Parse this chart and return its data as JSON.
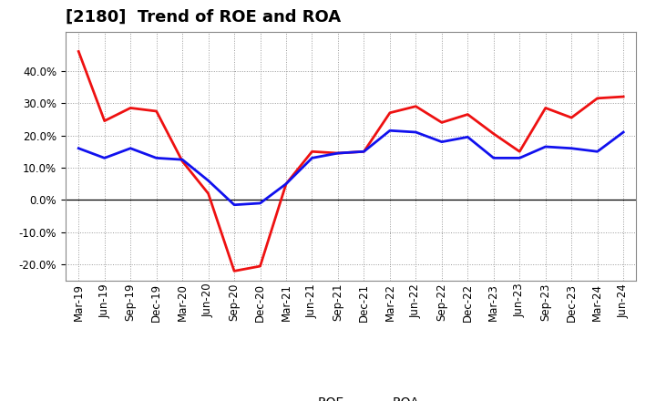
{
  "title": "[2180]  Trend of ROE and ROA",
  "labels": [
    "Mar-19",
    "Jun-19",
    "Sep-19",
    "Dec-19",
    "Mar-20",
    "Jun-20",
    "Sep-20",
    "Dec-20",
    "Mar-21",
    "Jun-21",
    "Sep-21",
    "Dec-21",
    "Mar-22",
    "Jun-22",
    "Sep-22",
    "Dec-22",
    "Mar-23",
    "Jun-23",
    "Sep-23",
    "Dec-23",
    "Mar-24",
    "Jun-24"
  ],
  "ROE": [
    46.0,
    24.5,
    28.5,
    27.5,
    12.0,
    2.0,
    -22.0,
    -20.5,
    5.0,
    15.0,
    14.5,
    15.0,
    27.0,
    29.0,
    24.0,
    26.5,
    20.5,
    15.0,
    28.5,
    25.5,
    31.5,
    32.0
  ],
  "ROA": [
    16.0,
    13.0,
    16.0,
    13.0,
    12.5,
    6.0,
    -1.5,
    -1.0,
    5.0,
    13.0,
    14.5,
    15.0,
    21.5,
    21.0,
    18.0,
    19.5,
    13.0,
    13.0,
    16.5,
    16.0,
    15.0,
    21.0
  ],
  "ROE_color": "#ee1111",
  "ROA_color": "#1111ee",
  "background_color": "#ffffff",
  "grid_color": "#999999",
  "ylim": [
    -25,
    52
  ],
  "yticks": [
    -20,
    -10,
    0,
    10,
    20,
    30,
    40
  ],
  "line_width": 2.0,
  "title_fontsize": 13,
  "legend_fontsize": 10,
  "tick_fontsize": 8.5
}
